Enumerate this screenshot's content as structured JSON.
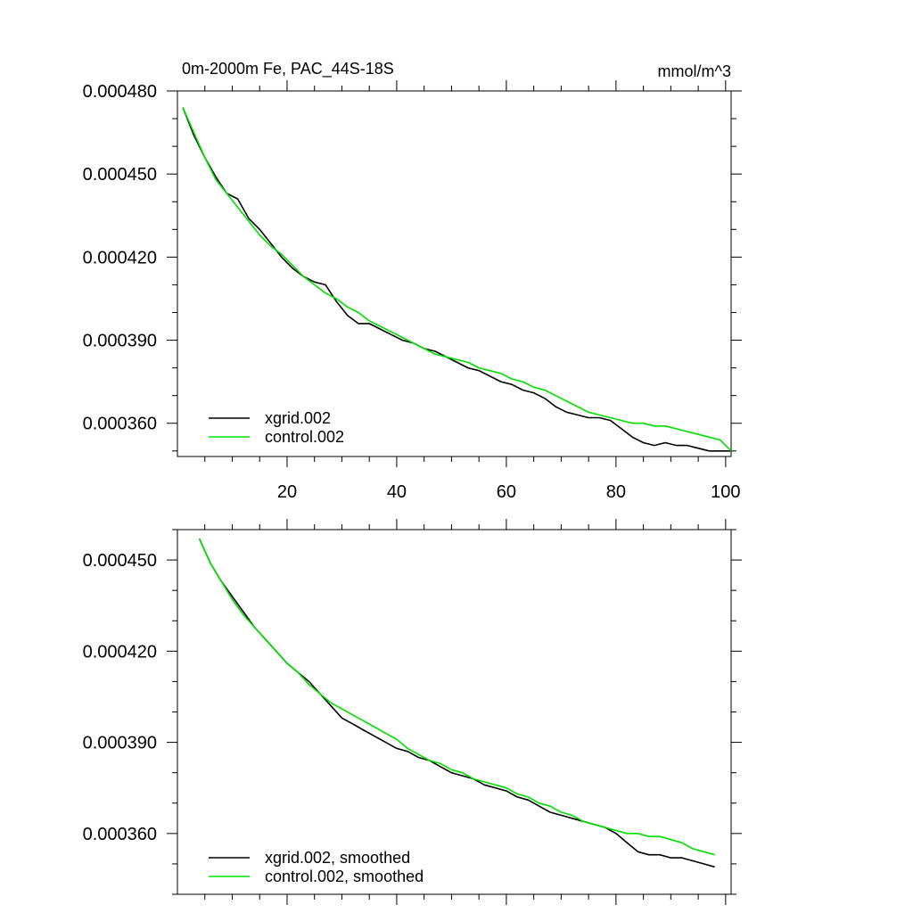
{
  "title_left": "0m-2000m Fe, PAC_44S-18S",
  "title_right": "mmol/m^3",
  "colors": {
    "xgrid": "#000000",
    "control": "#00e000",
    "axis": "#000000",
    "background": "#ffffff"
  },
  "chart_data": [
    {
      "type": "line",
      "title": "0m-2000m Fe, PAC_44S-18S",
      "units": "mmol/m^3",
      "xlabel": "",
      "ylabel": "",
      "xlim": [
        0,
        101
      ],
      "ylim": [
        0.000348,
        0.00048
      ],
      "x_ticks": [
        20,
        40,
        60,
        80,
        100
      ],
      "x_tick_labels": [
        "20",
        "40",
        "60",
        "80",
        "100"
      ],
      "y_ticks": [
        0.00036,
        0.00039,
        0.00042,
        0.00045,
        0.00048
      ],
      "y_tick_labels": [
        "0.000360",
        "0.000390",
        "0.000420",
        "0.000450",
        "0.000480"
      ],
      "legend_position": "bottom-left",
      "series": [
        {
          "name": "xgrid.002",
          "color_key": "xgrid",
          "x": [
            1,
            3,
            5,
            7,
            9,
            11,
            13,
            15,
            17,
            19,
            21,
            23,
            25,
            27,
            29,
            31,
            33,
            35,
            37,
            39,
            41,
            43,
            45,
            47,
            49,
            51,
            53,
            55,
            57,
            59,
            61,
            63,
            65,
            67,
            69,
            71,
            73,
            75,
            77,
            79,
            81,
            83,
            85,
            87,
            89,
            91,
            93,
            95,
            97,
            99,
            101
          ],
          "values": [
            0.000474,
            0.000464,
            0.000456,
            0.000449,
            0.000443,
            0.000441,
            0.000434,
            0.00043,
            0.000425,
            0.00042,
            0.000416,
            0.000413,
            0.000411,
            0.00041,
            0.000404,
            0.000399,
            0.000396,
            0.000396,
            0.000394,
            0.000392,
            0.00039,
            0.000389,
            0.000387,
            0.000386,
            0.000384,
            0.000382,
            0.00038,
            0.000379,
            0.000377,
            0.000375,
            0.000374,
            0.000372,
            0.000371,
            0.000369,
            0.000366,
            0.000364,
            0.000363,
            0.000362,
            0.000362,
            0.000361,
            0.000358,
            0.000355,
            0.000353,
            0.000352,
            0.000353,
            0.000352,
            0.000352,
            0.000351,
            0.00035,
            0.00035,
            0.00035
          ]
        },
        {
          "name": "control.002",
          "color_key": "control",
          "x": [
            1,
            3,
            5,
            7,
            9,
            11,
            13,
            15,
            17,
            19,
            21,
            23,
            25,
            27,
            29,
            31,
            33,
            35,
            37,
            39,
            41,
            43,
            45,
            47,
            49,
            51,
            53,
            55,
            57,
            59,
            61,
            63,
            65,
            67,
            69,
            71,
            73,
            75,
            77,
            79,
            81,
            83,
            85,
            87,
            89,
            91,
            93,
            95,
            97,
            99,
            101
          ],
          "values": [
            0.000474,
            0.000465,
            0.000456,
            0.000448,
            0.000443,
            0.000438,
            0.000433,
            0.000428,
            0.000424,
            0.000421,
            0.000417,
            0.000413,
            0.00041,
            0.000407,
            0.000405,
            0.000402,
            0.0004,
            0.000397,
            0.000395,
            0.000393,
            0.000391,
            0.000389,
            0.000387,
            0.000385,
            0.000384,
            0.000383,
            0.000382,
            0.00038,
            0.000379,
            0.000378,
            0.000376,
            0.000375,
            0.000373,
            0.000372,
            0.00037,
            0.000368,
            0.000366,
            0.000364,
            0.000363,
            0.000362,
            0.000361,
            0.00036,
            0.00036,
            0.000359,
            0.000359,
            0.000358,
            0.000357,
            0.000356,
            0.000355,
            0.000354,
            0.00035
          ]
        }
      ]
    },
    {
      "type": "line",
      "title": "",
      "xlabel": "",
      "ylabel": "",
      "xlim": [
        0,
        101
      ],
      "ylim": [
        0.00034,
        0.00046
      ],
      "x_ticks": [
        20,
        40,
        60,
        80,
        100
      ],
      "x_tick_labels": [],
      "y_ticks": [
        0.00036,
        0.00039,
        0.00042,
        0.00045
      ],
      "y_tick_labels": [
        "0.000360",
        "0.000390",
        "0.000420",
        "0.000450"
      ],
      "legend_position": "bottom-left",
      "series": [
        {
          "name": "xgrid.002, smoothed",
          "color_key": "xgrid",
          "x": [
            4,
            6,
            8,
            10,
            12,
            14,
            16,
            18,
            20,
            22,
            24,
            26,
            28,
            30,
            32,
            34,
            36,
            38,
            40,
            42,
            44,
            46,
            48,
            50,
            52,
            54,
            56,
            58,
            60,
            62,
            64,
            66,
            68,
            70,
            72,
            74,
            76,
            78,
            80,
            82,
            84,
            86,
            88,
            90,
            92,
            94,
            96,
            98
          ],
          "values": [
            0.000457,
            0.000449,
            0.000443,
            0.000438,
            0.000433,
            0.000428,
            0.000424,
            0.00042,
            0.000416,
            0.000413,
            0.00041,
            0.000406,
            0.000402,
            0.000398,
            0.000396,
            0.000394,
            0.000392,
            0.00039,
            0.000388,
            0.000387,
            0.000385,
            0.000384,
            0.000382,
            0.00038,
            0.000379,
            0.000378,
            0.000376,
            0.000375,
            0.000374,
            0.000372,
            0.000371,
            0.000369,
            0.000367,
            0.000366,
            0.000365,
            0.000364,
            0.000363,
            0.000362,
            0.00036,
            0.000357,
            0.000354,
            0.000353,
            0.000353,
            0.000352,
            0.000352,
            0.000351,
            0.00035,
            0.000349
          ]
        },
        {
          "name": "control.002, smoothed",
          "color_key": "control",
          "x": [
            4,
            6,
            8,
            10,
            12,
            14,
            16,
            18,
            20,
            22,
            24,
            26,
            28,
            30,
            32,
            34,
            36,
            38,
            40,
            42,
            44,
            46,
            48,
            50,
            52,
            54,
            56,
            58,
            60,
            62,
            64,
            66,
            68,
            70,
            72,
            74,
            76,
            78,
            80,
            82,
            84,
            86,
            88,
            90,
            92,
            94,
            96,
            98
          ],
          "values": [
            0.000457,
            0.000449,
            0.000443,
            0.000437,
            0.000432,
            0.000428,
            0.000424,
            0.00042,
            0.000416,
            0.000413,
            0.000409,
            0.000406,
            0.000403,
            0.000401,
            0.000399,
            0.000397,
            0.000395,
            0.000393,
            0.000391,
            0.000388,
            0.000386,
            0.000384,
            0.000383,
            0.000381,
            0.00038,
            0.000378,
            0.000377,
            0.000376,
            0.000375,
            0.000373,
            0.000372,
            0.00037,
            0.000369,
            0.000367,
            0.000366,
            0.000364,
            0.000363,
            0.000362,
            0.000361,
            0.00036,
            0.00036,
            0.000359,
            0.000359,
            0.000358,
            0.000357,
            0.000355,
            0.000354,
            0.000353
          ]
        }
      ]
    }
  ]
}
